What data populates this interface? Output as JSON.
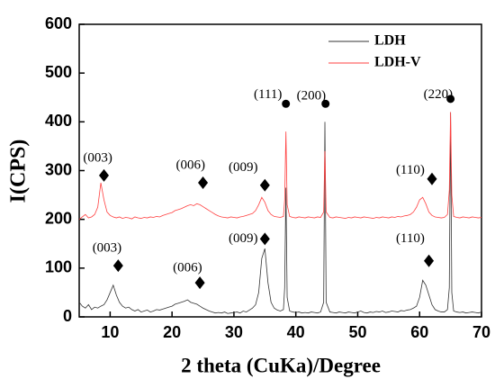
{
  "chart_data": {
    "type": "line",
    "xlabel": "2 theta (CuKa)/Degree",
    "ylabel": "I(CPS)",
    "xlim": [
      5,
      70
    ],
    "xticks": [
      10,
      20,
      30,
      40,
      50,
      60,
      70
    ],
    "ylim": [
      0,
      600
    ],
    "yticks": [
      0,
      100,
      200,
      300,
      400,
      500,
      600
    ],
    "legend": "upper right",
    "x": [
      5,
      5.5,
      6,
      6.5,
      7,
      7.5,
      8,
      8.5,
      9,
      9.5,
      10,
      10.5,
      11,
      11.5,
      12,
      12.5,
      13,
      13.5,
      14,
      14.5,
      15,
      15.5,
      16,
      16.5,
      17,
      17.5,
      18,
      18.5,
      19,
      19.5,
      20,
      20.5,
      21,
      21.5,
      22,
      22.5,
      23,
      23.5,
      24,
      24.5,
      25,
      25.5,
      26,
      26.5,
      27,
      27.5,
      28,
      28.5,
      29,
      29.5,
      30,
      30.5,
      31,
      31.5,
      32,
      32.5,
      33,
      33.5,
      34,
      34.5,
      35,
      35.5,
      36,
      36.5,
      37,
      37.5,
      38,
      38.2,
      38.4,
      38.6,
      39,
      39.5,
      40,
      40.5,
      41,
      41.5,
      42,
      42.5,
      43,
      43.5,
      44,
      44.5,
      44.7,
      44.9,
      45.5,
      46,
      46.5,
      47,
      47.5,
      48,
      48.5,
      49,
      49.5,
      50,
      50.5,
      51,
      51.5,
      52,
      52.5,
      53,
      53.5,
      54,
      54.5,
      55,
      55.5,
      56,
      56.5,
      57,
      57.5,
      58,
      58.5,
      59,
      59.5,
      60,
      60.5,
      61,
      61.5,
      62,
      62.5,
      63,
      63.5,
      64,
      64.5,
      64.8,
      65,
      65.2,
      65.5,
      66,
      66.5,
      67,
      67.5,
      68,
      68.5,
      69,
      69.5,
      70
    ],
    "series": [
      {
        "name": "LDH",
        "color": "#333333",
        "values": [
          30,
          22,
          18,
          25,
          15,
          20,
          18,
          22,
          25,
          35,
          50,
          65,
          45,
          30,
          22,
          18,
          20,
          15,
          12,
          15,
          10,
          12,
          14,
          10,
          12,
          15,
          14,
          16,
          18,
          20,
          22,
          26,
          28,
          30,
          32,
          35,
          30,
          28,
          26,
          22,
          18,
          15,
          12,
          10,
          8,
          9,
          8,
          10,
          7,
          8,
          9,
          10,
          8,
          12,
          10,
          14,
          18,
          25,
          50,
          120,
          140,
          70,
          30,
          18,
          14,
          12,
          15,
          60,
          265,
          40,
          12,
          10,
          9,
          10,
          8,
          9,
          8,
          10,
          9,
          8,
          10,
          30,
          400,
          30,
          10,
          9,
          8,
          10,
          9,
          8,
          10,
          9,
          8,
          10,
          12,
          9,
          8,
          10,
          9,
          11,
          10,
          12,
          9,
          10,
          12,
          11,
          10,
          13,
          12,
          14,
          15,
          18,
          22,
          40,
          75,
          65,
          45,
          25,
          15,
          12,
          10,
          10,
          15,
          60,
          420,
          50,
          12,
          10,
          9,
          10,
          8,
          9,
          10,
          9,
          8,
          10
        ]
      },
      {
        "name": "LDH-V",
        "color": "#ff4040",
        "values": [
          200,
          205,
          210,
          203,
          205,
          210,
          225,
          275,
          240,
          215,
          208,
          205,
          203,
          205,
          202,
          204,
          203,
          201,
          205,
          203,
          202,
          204,
          203,
          205,
          204,
          206,
          205,
          208,
          210,
          212,
          214,
          218,
          220,
          222,
          225,
          228,
          230,
          228,
          232,
          230,
          226,
          222,
          218,
          214,
          210,
          207,
          205,
          204,
          203,
          205,
          204,
          203,
          205,
          206,
          208,
          210,
          212,
          218,
          230,
          245,
          235,
          218,
          210,
          206,
          205,
          204,
          206,
          240,
          380,
          230,
          206,
          204,
          203,
          205,
          204,
          203,
          205,
          204,
          203,
          205,
          204,
          215,
          340,
          215,
          204,
          203,
          205,
          204,
          203,
          202,
          204,
          203,
          205,
          204,
          203,
          205,
          204,
          203,
          202,
          204,
          203,
          205,
          204,
          203,
          205,
          204,
          206,
          205,
          207,
          208,
          210,
          215,
          225,
          240,
          245,
          232,
          215,
          208,
          205,
          204,
          203,
          204,
          210,
          260,
          420,
          250,
          206,
          204,
          203,
          205,
          204,
          203,
          205,
          204,
          203,
          204
        ]
      }
    ],
    "annotations": [
      {
        "text": "(003)",
        "x": 9.5,
        "y": 140
      },
      {
        "text": "(006)",
        "x": 22.5,
        "y": 100
      },
      {
        "text": "(009)",
        "x": 31.5,
        "y": 160
      },
      {
        "text": "(110)",
        "x": 58.5,
        "y": 160
      },
      {
        "text": "(003)",
        "x": 8,
        "y": 325
      },
      {
        "text": "(006)",
        "x": 23,
        "y": 310
      },
      {
        "text": "(009)",
        "x": 31.5,
        "y": 305
      },
      {
        "text": "(110)",
        "x": 58.5,
        "y": 300
      },
      {
        "text": "(111)",
        "x": 35.5,
        "y": 455
      },
      {
        "text": "(200)",
        "x": 42.5,
        "y": 452
      },
      {
        "text": "(220)",
        "x": 63,
        "y": 455
      }
    ],
    "markers": [
      {
        "marker": "diamond",
        "x": 11.3,
        "y": 105
      },
      {
        "marker": "diamond",
        "x": 24.5,
        "y": 70
      },
      {
        "marker": "diamond",
        "x": 35,
        "y": 160
      },
      {
        "marker": "diamond",
        "x": 61.5,
        "y": 115
      },
      {
        "marker": "diamond",
        "x": 9,
        "y": 290
      },
      {
        "marker": "diamond",
        "x": 25,
        "y": 275
      },
      {
        "marker": "diamond",
        "x": 35,
        "y": 270
      },
      {
        "marker": "diamond",
        "x": 62,
        "y": 283
      },
      {
        "marker": "circle",
        "x": 38.4,
        "y": 437
      },
      {
        "marker": "circle",
        "x": 44.8,
        "y": 437
      },
      {
        "marker": "circle",
        "x": 65,
        "y": 447
      }
    ]
  }
}
